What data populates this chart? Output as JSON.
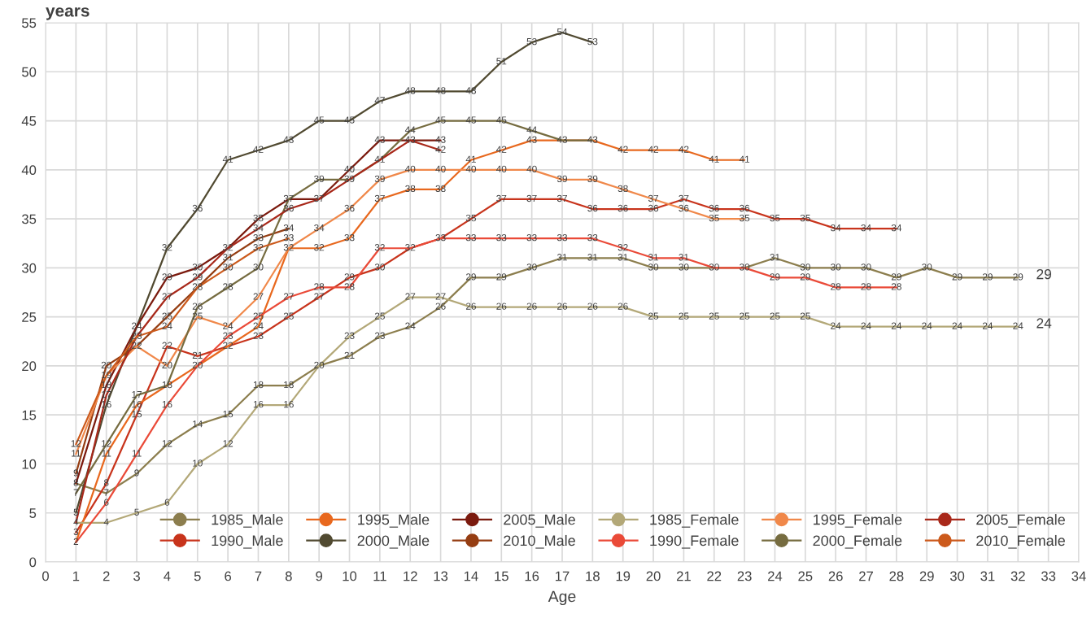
{
  "chart_data": {
    "type": "line",
    "ylabel": "years",
    "xlabel": "Age",
    "xlim": [
      0,
      34
    ],
    "xticks": [
      0,
      1,
      2,
      3,
      4,
      5,
      6,
      7,
      8,
      9,
      10,
      11,
      12,
      13,
      14,
      15,
      16,
      17,
      18,
      19,
      20,
      21,
      22,
      23,
      24,
      25,
      26,
      27,
      28,
      29,
      30,
      31,
      32,
      33,
      34
    ],
    "ylim": [
      0,
      55
    ],
    "yticks": [
      0,
      5,
      10,
      15,
      20,
      25,
      30,
      35,
      40,
      45,
      50,
      55
    ],
    "grid": true,
    "legend": "bottom",
    "series": [
      {
        "name": "1985_Male",
        "color": "#8c7e4e",
        "x": [
          1,
          2,
          3,
          4,
          5,
          6,
          7,
          8,
          9,
          10,
          11,
          12,
          13,
          14,
          15,
          16,
          17,
          18,
          19,
          20,
          21,
          22,
          23,
          24,
          25,
          26,
          27,
          28,
          29,
          30,
          31,
          32
        ],
        "values": [
          8,
          7,
          9,
          12,
          14,
          15,
          18,
          18,
          20,
          21,
          23,
          24,
          26,
          29,
          29,
          30,
          31,
          31,
          31,
          30,
          30,
          30,
          30,
          31,
          30,
          30,
          30,
          29,
          30,
          29,
          29,
          29
        ],
        "value_labels": [
          "8",
          "7",
          "9",
          "12",
          "14",
          "15",
          "18",
          "18",
          "20",
          "21",
          "23",
          "24",
          "26",
          "29",
          "29",
          "30",
          "31",
          "31",
          "31",
          "30",
          "30",
          "30",
          "30",
          "31",
          "30",
          "30",
          "30",
          "29",
          "30",
          "29",
          "29",
          "29"
        ]
      },
      {
        "name": "1990_Male",
        "color": "#c8341c",
        "x": [
          1,
          2,
          3,
          4,
          5,
          6,
          7,
          8,
          9,
          10,
          11,
          12,
          13,
          14,
          15,
          16,
          17,
          18,
          19,
          20,
          21,
          22,
          23,
          24,
          25,
          26,
          27,
          28
        ],
        "values": [
          3,
          8,
          15,
          22,
          21,
          22,
          23,
          25,
          27,
          29,
          30,
          32,
          33,
          35,
          37,
          37,
          37,
          36,
          36,
          36,
          37,
          36,
          36,
          35,
          35,
          34,
          34,
          34
        ],
        "value_labels": [
          "3",
          "8",
          "15",
          "22",
          "21",
          "22",
          "23",
          "25",
          "27",
          "29",
          "30",
          "32",
          "33",
          "35",
          "37",
          "37",
          "37",
          "36",
          "36",
          "36",
          "37",
          "36",
          "36",
          "35",
          "35",
          "34",
          "34",
          "34"
        ]
      },
      {
        "name": "1995_Male",
        "color": "#e8681e",
        "x": [
          1,
          2,
          3,
          4,
          5,
          6,
          7,
          8,
          9,
          10,
          11,
          12,
          13,
          14,
          15,
          16,
          17,
          18,
          19,
          20,
          21,
          22,
          23
        ],
        "values": [
          2,
          11,
          16,
          18,
          20,
          22,
          24,
          32,
          32,
          33,
          37,
          38,
          38,
          41,
          42,
          43,
          43,
          43,
          42,
          42,
          42,
          41,
          41
        ],
        "value_labels": [
          "2",
          "11",
          "16",
          "18",
          "20",
          null,
          "24",
          "32",
          "32",
          "33",
          "37",
          "38",
          "38",
          "41",
          "42",
          "43",
          "43",
          "43",
          "42",
          "42",
          "42",
          "41",
          "41"
        ]
      },
      {
        "name": "2000_Male",
        "color": "#514a31",
        "x": [
          1,
          2,
          3,
          4,
          5,
          6,
          7,
          8,
          9,
          10,
          11,
          12,
          13,
          14,
          15,
          16,
          17,
          18
        ],
        "values": [
          5,
          16,
          24,
          32,
          36,
          41,
          42,
          43,
          45,
          45,
          47,
          48,
          48,
          48,
          51,
          53,
          54,
          53
        ],
        "value_labels": [
          "5",
          "16",
          "24",
          "32",
          "36",
          "41",
          "42",
          "43",
          "45",
          "45",
          "47",
          "48",
          "48",
          "48",
          "51",
          "53",
          "54",
          "53"
        ]
      },
      {
        "name": "2005_Male",
        "color": "#7b1a0e",
        "x": [
          1,
          2,
          3,
          4,
          5,
          6,
          7,
          8,
          9,
          10,
          11,
          12,
          13
        ],
        "values": [
          8,
          18,
          24,
          29,
          30,
          32,
          35,
          37,
          37,
          40,
          43,
          43,
          43
        ],
        "value_labels": [
          null,
          "18",
          null,
          "29",
          "30",
          "32",
          "35",
          "37",
          "37",
          "40",
          "43",
          "43",
          "43"
        ]
      },
      {
        "name": "2010_Male",
        "color": "#953d12",
        "x": [
          1,
          2,
          3,
          4,
          5,
          6,
          7,
          8
        ],
        "values": [
          9,
          20,
          22,
          25,
          28,
          31,
          33,
          34
        ],
        "value_labels": [
          "9",
          "20",
          "22",
          "25",
          "28",
          "31",
          "33",
          "34"
        ]
      },
      {
        "name": "1985_Female",
        "color": "#b3a878",
        "x": [
          1,
          2,
          3,
          4,
          5,
          6,
          7,
          8,
          9,
          10,
          11,
          12,
          13,
          14,
          15,
          16,
          17,
          18,
          19,
          20,
          21,
          22,
          23,
          24,
          25,
          26,
          27,
          28,
          29,
          30,
          31,
          32
        ],
        "values": [
          4,
          4,
          5,
          6,
          10,
          12,
          16,
          16,
          20,
          23,
          25,
          27,
          27,
          26,
          26,
          26,
          26,
          26,
          26,
          25,
          25,
          25,
          25,
          25,
          25,
          24,
          24,
          24,
          24,
          24,
          24,
          24
        ],
        "value_labels": [
          "4",
          "4",
          "5",
          "6",
          "10",
          "12",
          "16",
          "16",
          null,
          "23",
          "25",
          "27",
          "27",
          "26",
          "26",
          "26",
          "26",
          "26",
          "26",
          "25",
          "25",
          "25",
          "25",
          "25",
          "25",
          "24",
          "24",
          "24",
          "24",
          "24",
          "24",
          "24"
        ]
      },
      {
        "name": "1990_Female",
        "color": "#ea4a38",
        "x": [
          1,
          2,
          3,
          4,
          5,
          6,
          7,
          8,
          9,
          10,
          11,
          12,
          13,
          14,
          15,
          16,
          17,
          18,
          19,
          20,
          21,
          22,
          23,
          24,
          25,
          26,
          27,
          28
        ],
        "values": [
          2,
          6,
          11,
          16,
          20,
          23,
          25,
          27,
          28,
          28,
          32,
          32,
          33,
          33,
          33,
          33,
          33,
          33,
          32,
          31,
          31,
          30,
          30,
          29,
          29,
          28,
          28,
          28
        ],
        "value_labels": [
          null,
          "6",
          "11",
          "16",
          null,
          "23",
          "25",
          "27",
          "28",
          "28",
          "32",
          null,
          null,
          "33",
          "33",
          "33",
          "33",
          "33",
          "32",
          "31",
          "31",
          null,
          null,
          "29",
          "29",
          "28",
          "28",
          "28"
        ]
      },
      {
        "name": "1995_Female",
        "color": "#f0884a",
        "x": [
          1,
          2,
          3,
          4,
          5,
          6,
          7,
          8,
          9,
          10,
          11,
          12,
          13,
          14,
          15,
          16,
          17,
          18,
          19,
          20,
          21,
          22,
          23
        ],
        "values": [
          11,
          19,
          22,
          20,
          25,
          24,
          27,
          32,
          34,
          36,
          39,
          40,
          40,
          40,
          40,
          40,
          39,
          39,
          38,
          37,
          36,
          35,
          35
        ],
        "value_labels": [
          "11",
          "19",
          null,
          "20",
          "25",
          "24",
          "27",
          null,
          "34",
          "36",
          "39",
          "40",
          "40",
          "40",
          "40",
          "40",
          "39",
          "39",
          "38",
          "37",
          "36",
          "35",
          "35"
        ]
      },
      {
        "name": "2000_Female",
        "color": "#766c40",
        "x": [
          1,
          2,
          3,
          4,
          5,
          6,
          7,
          8,
          9,
          10,
          11,
          12,
          13,
          14,
          15,
          16,
          17,
          18
        ],
        "values": [
          7,
          12,
          17,
          18,
          26,
          28,
          30,
          37,
          39,
          39,
          41,
          44,
          45,
          45,
          45,
          44,
          43,
          43
        ],
        "value_labels": [
          "7",
          "12",
          "17",
          null,
          "26",
          "28",
          "30",
          null,
          "39",
          "39",
          "41",
          "44",
          "45",
          "45",
          "45",
          "44",
          null,
          null
        ]
      },
      {
        "name": "2005_Female",
        "color": "#a8281a",
        "x": [
          1,
          2,
          3,
          4,
          5,
          6,
          7,
          8,
          9,
          10,
          11,
          12,
          13
        ],
        "values": [
          4,
          17,
          23,
          27,
          29,
          32,
          34,
          36,
          37,
          39,
          41,
          43,
          42
        ],
        "value_labels": [
          null,
          "17",
          "23",
          "27",
          "29",
          null,
          "34",
          "36",
          null,
          null,
          null,
          null,
          "42"
        ]
      },
      {
        "name": "2010_Female",
        "color": "#cc5a1c",
        "x": [
          1,
          2,
          3,
          4,
          5,
          6,
          7,
          8
        ],
        "values": [
          12,
          19,
          23,
          24,
          28,
          30,
          32,
          33
        ],
        "value_labels": [
          "12",
          null,
          null,
          "24",
          null,
          "30",
          "32",
          "33"
        ]
      }
    ],
    "annotations": [
      {
        "text": "29",
        "x": 32,
        "y": 29
      },
      {
        "text": "24",
        "x": 32,
        "y": 24
      }
    ]
  }
}
